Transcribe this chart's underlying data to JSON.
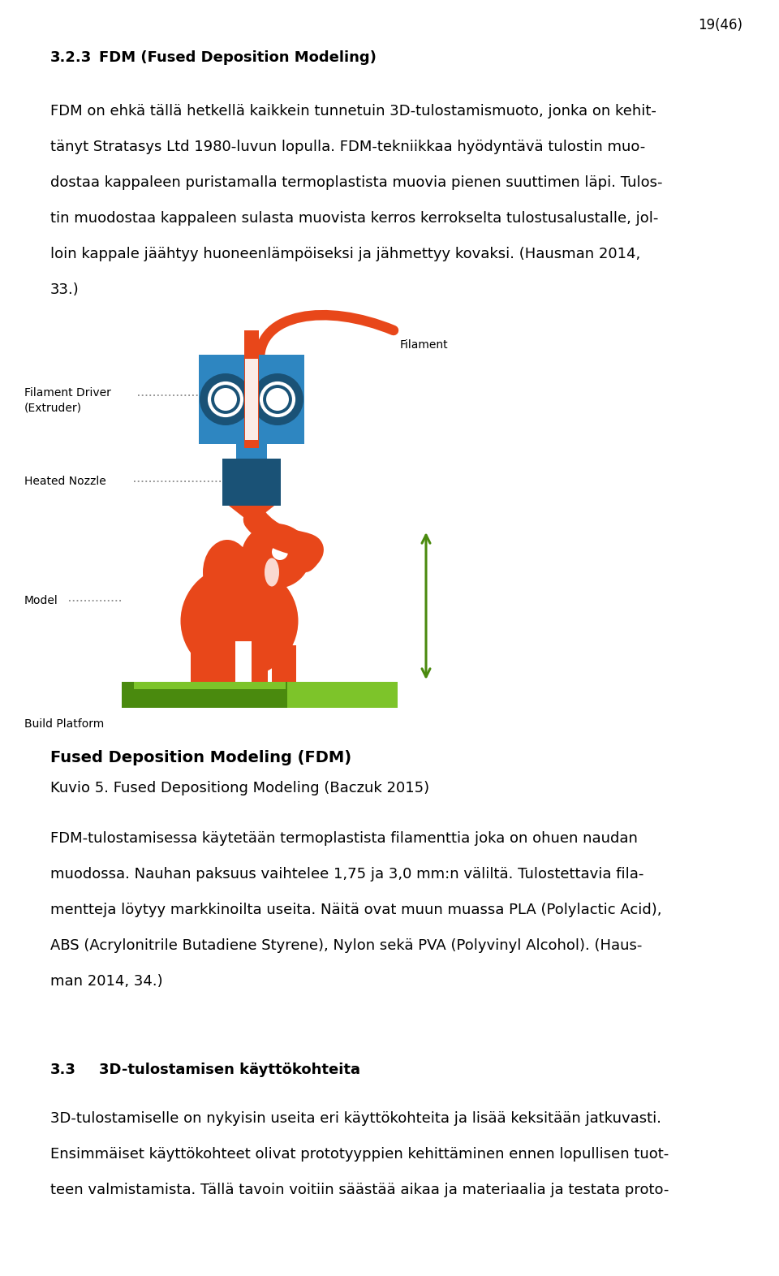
{
  "page_number": "19(46)",
  "heading_section": "3.2.3",
  "heading_bold": "FDM (Fused Deposition Modeling)",
  "caption": "Kuvio 5. Fused Depositiong Modeling (Baczuk 2015)",
  "fdm_title": "Fused Deposition Modeling (FDM)",
  "heading2_section": "3.3",
  "heading2_bold": "3D-tulostamisen käyttökohteita",
  "text_color": "#000000",
  "bg_color": "#ffffff",
  "orange_color": "#E8471A",
  "blue_color": "#2E86C1",
  "blue_dark": "#1A5276",
  "green_color": "#4A8A0E",
  "green_light": "#7DC42A",
  "label_line_color": "#888888",
  "para1_lines": [
    "FDM on ehkä tällä hetkellä kaikkein tunnetuin 3D-tulostamismuoto, jonka on kehit-",
    "tänyt Stratasys Ltd 1980-luvun lopulla. FDM-tekniikkaa hyödyntävä tulostin muo-",
    "dostaa kappaleen puristamalla termoplastista muovia pienen suuttimen läpi. Tulos-",
    "tin muodostaa kappaleen sulasta muovista kerros kerrokselta tulostusalustalle, jol-",
    "loin kappale jäähtyy huoneenlämpöiseksi ja jähmettyy kovaksi. (Hausman 2014,",
    "33.)"
  ],
  "para2_lines": [
    "FDM-tulostamisessa käytetään termoplastista filamenttia joka on ohuen naudan",
    "muodossa. Nauhan paksuus vaihtelee 1,75 ja 3,0 mm:n väliltä. Tulostettavia fila-",
    "mentteja löytyy markkinoilta useita. Näitä ovat muun muassa PLA (Polylactic Acid),",
    "ABS (Acrylonitrile Butadiene Styrene), Nylon sekä PVA (Polyvinyl Alcohol). (Haus-",
    "man 2014, 34.)"
  ],
  "para3_lines": [
    "3D-tulostamiselle on nykyisin useita eri käyttökohteita ja lisää keksitään jatkuvasti.",
    "Ensimmäiset käyttökohteet olivat prototyyppien kehittäminen ennen lopullisen tuot-",
    "teen valmistamista. Tällä tavoin voitiin säästää aikaa ja materiaalia ja testata proto-"
  ]
}
